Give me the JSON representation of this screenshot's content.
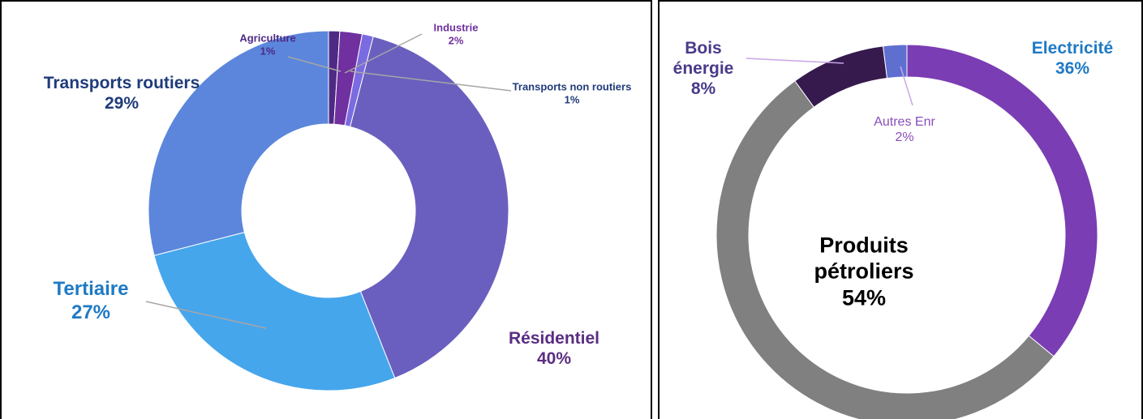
{
  "chart_data": [
    {
      "type": "donut",
      "categories": [
        "Agriculture",
        "Industrie",
        "Transports non routiers",
        "Résidentiel",
        "Tertiaire",
        "Transports routiers"
      ],
      "values": [
        1,
        2,
        1,
        40,
        27,
        29
      ],
      "value_labels": [
        "1%",
        "2%",
        "1%",
        "40%",
        "27%",
        "29%"
      ],
      "colors": [
        "#4e2a84",
        "#7030a0",
        "#7b6be0",
        "#6a5fbf",
        "#46a6ec",
        "#5b86dc"
      ],
      "label_colors": [
        "#4e2a84",
        "#7030a0",
        "#1f3b7a",
        "#5a2d82",
        "#1f7ac4",
        "#1f3b7a"
      ]
    },
    {
      "type": "donut",
      "categories": [
        "Electricité",
        "Produits pétroliers",
        "Bois énergie",
        "Autres Enr"
      ],
      "values": [
        36,
        54,
        8,
        2
      ],
      "value_labels": [
        "36%",
        "54%",
        "8%",
        "2%"
      ],
      "colors": [
        "#7a3db3",
        "#808080",
        "#361a4d",
        "#5e6fd0"
      ],
      "label_colors": [
        "#1f7ac4",
        "#000000",
        "#4a3a8a",
        "#8a4dba"
      ]
    }
  ]
}
